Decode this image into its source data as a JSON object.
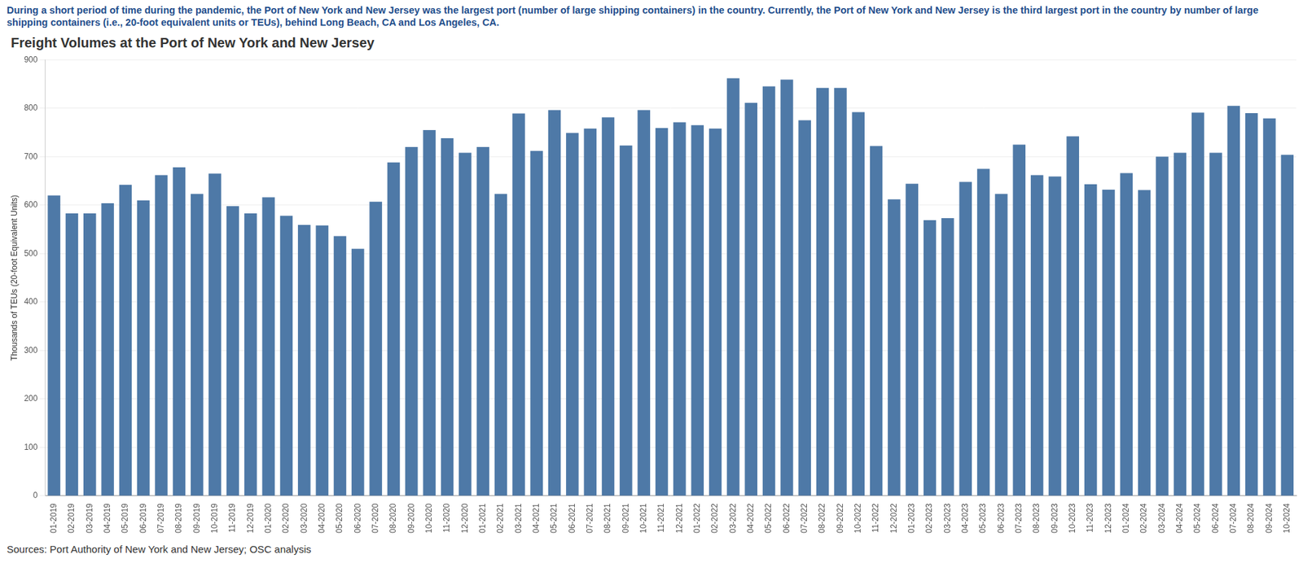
{
  "chart_data": {
    "type": "bar",
    "subtitle": "During a short period of time during the pandemic, the Port of New York and New Jersey was the largest port (number of large shipping containers) in the country. Currently, the Port of New York and New Jersey is the third largest port in the country by number of large shipping containers (i.e., 20-foot equivalent units or TEUs), behind Long Beach, CA and Los Angeles, CA.",
    "title": "Freight Volumes at the Port of New York and New Jersey",
    "y_label": "Thousands of TEUs (20-foot Equivalent Units)",
    "source": "Sources: Port Authority of New York and New Jersey; OSC analysis",
    "categories": [
      "01-2019",
      "02-2019",
      "03-2019",
      "04-2019",
      "05-2019",
      "06-2019",
      "07-2019",
      "08-2019",
      "09-2019",
      "10-2019",
      "11-2019",
      "12-2019",
      "01-2020",
      "02-2020",
      "03-2020",
      "04-2020",
      "05-2020",
      "06-2020",
      "07-2020",
      "08-2020",
      "09-2020",
      "10-2020",
      "11-2020",
      "12-2020",
      "01-2021",
      "02-2021",
      "03-2021",
      "04-2021",
      "05-2021",
      "06-2021",
      "07-2021",
      "08-2021",
      "09-2021",
      "10-2021",
      "11-2021",
      "12-2021",
      "01-2022",
      "02-2022",
      "03-2022",
      "04-2022",
      "05-2022",
      "06-2022",
      "07-2022",
      "08-2022",
      "09-2022",
      "10-2022",
      "11-2022",
      "12-2022",
      "01-2023",
      "02-2023",
      "03-2023",
      "04-2023",
      "05-2023",
      "06-2023",
      "07-2023",
      "08-2023",
      "09-2023",
      "10-2023",
      "11-2023",
      "12-2023",
      "01-2024",
      "02-2024",
      "03-2024",
      "04-2024",
      "05-2024",
      "06-2024",
      "07-2024",
      "08-2024",
      "09-2024",
      "10-2024"
    ],
    "values": [
      620,
      583,
      583,
      604,
      642,
      610,
      662,
      678,
      623,
      665,
      598,
      583,
      616,
      578,
      559,
      558,
      536,
      510,
      607,
      688,
      720,
      755,
      738,
      708,
      720,
      623,
      789,
      712,
      796,
      749,
      758,
      781,
      723,
      796,
      759,
      771,
      765,
      758,
      862,
      811,
      845,
      859,
      775,
      842,
      842,
      792,
      722,
      612,
      644,
      569,
      573,
      648,
      675,
      623,
      725,
      662,
      659,
      742,
      643,
      632,
      666,
      631,
      700,
      708,
      791,
      708,
      805,
      790,
      779,
      704
    ],
    "color": "#4e79a7",
    "ylim": [
      0,
      900
    ],
    "yticks": [
      0,
      100,
      200,
      300,
      400,
      500,
      600,
      700,
      800,
      900
    ],
    "grid": true
  }
}
